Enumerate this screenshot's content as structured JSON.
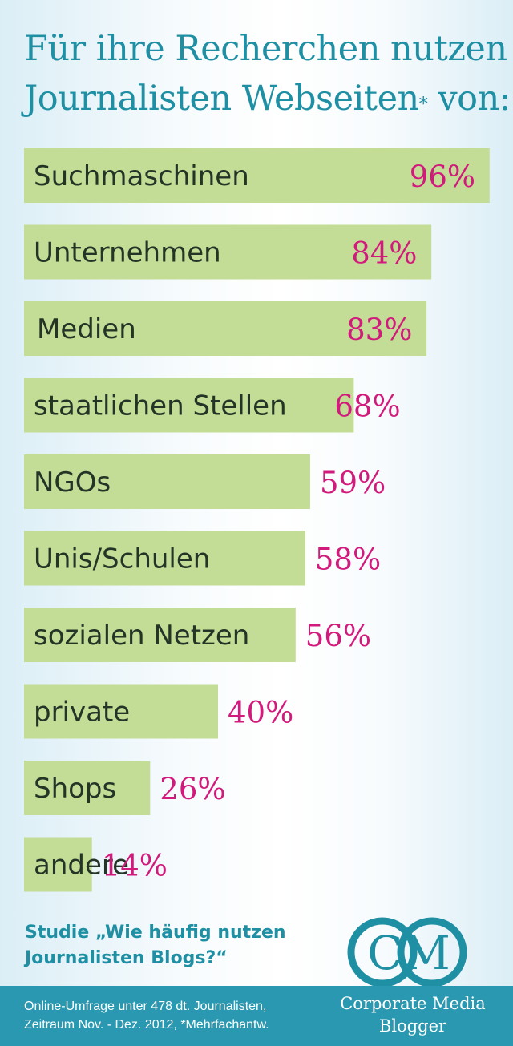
{
  "title": {
    "line1": "Für ihre Recherchen nutzen",
    "line2": "Journalisten Webseiten",
    "superscript": "*",
    "line2_end": " von:"
  },
  "chart_data": {
    "type": "bar",
    "orientation": "horizontal",
    "categories": [
      "Suchmaschinen",
      "Unternehmen",
      "Medien",
      "staatlichen Stellen",
      "NGOs",
      "Unis/Schulen",
      "sozialen Netzen",
      "private",
      "Shops",
      "andere"
    ],
    "values": [
      96,
      84,
      83,
      68,
      59,
      58,
      56,
      40,
      26,
      14
    ],
    "value_labels": [
      "96%",
      "84%",
      "83%",
      "68%",
      "59%",
      "58%",
      "56%",
      "40%",
      "26%",
      "14%"
    ],
    "unit": "%",
    "xlim": [
      0,
      100
    ],
    "bar_color": "#c3dc96",
    "value_color": "#d21a7c",
    "grid": false,
    "legend": "none"
  },
  "study": {
    "line1": "Studie „Wie häufig nutzen",
    "line2": "Journalisten Blogs?“"
  },
  "logo": {
    "text": "CM",
    "icon": "cm-logo",
    "color": "#1f8fa4"
  },
  "footer": {
    "note_line1": "Online-Umfrage unter 478 dt. Journalisten,",
    "note_line2": "Zeitraum Nov. - Dez. 2012,  *Mehrfachantw.",
    "brand_line1": "Corporate Media",
    "brand_line2": "Blogger",
    "background": "#2a98b0"
  }
}
